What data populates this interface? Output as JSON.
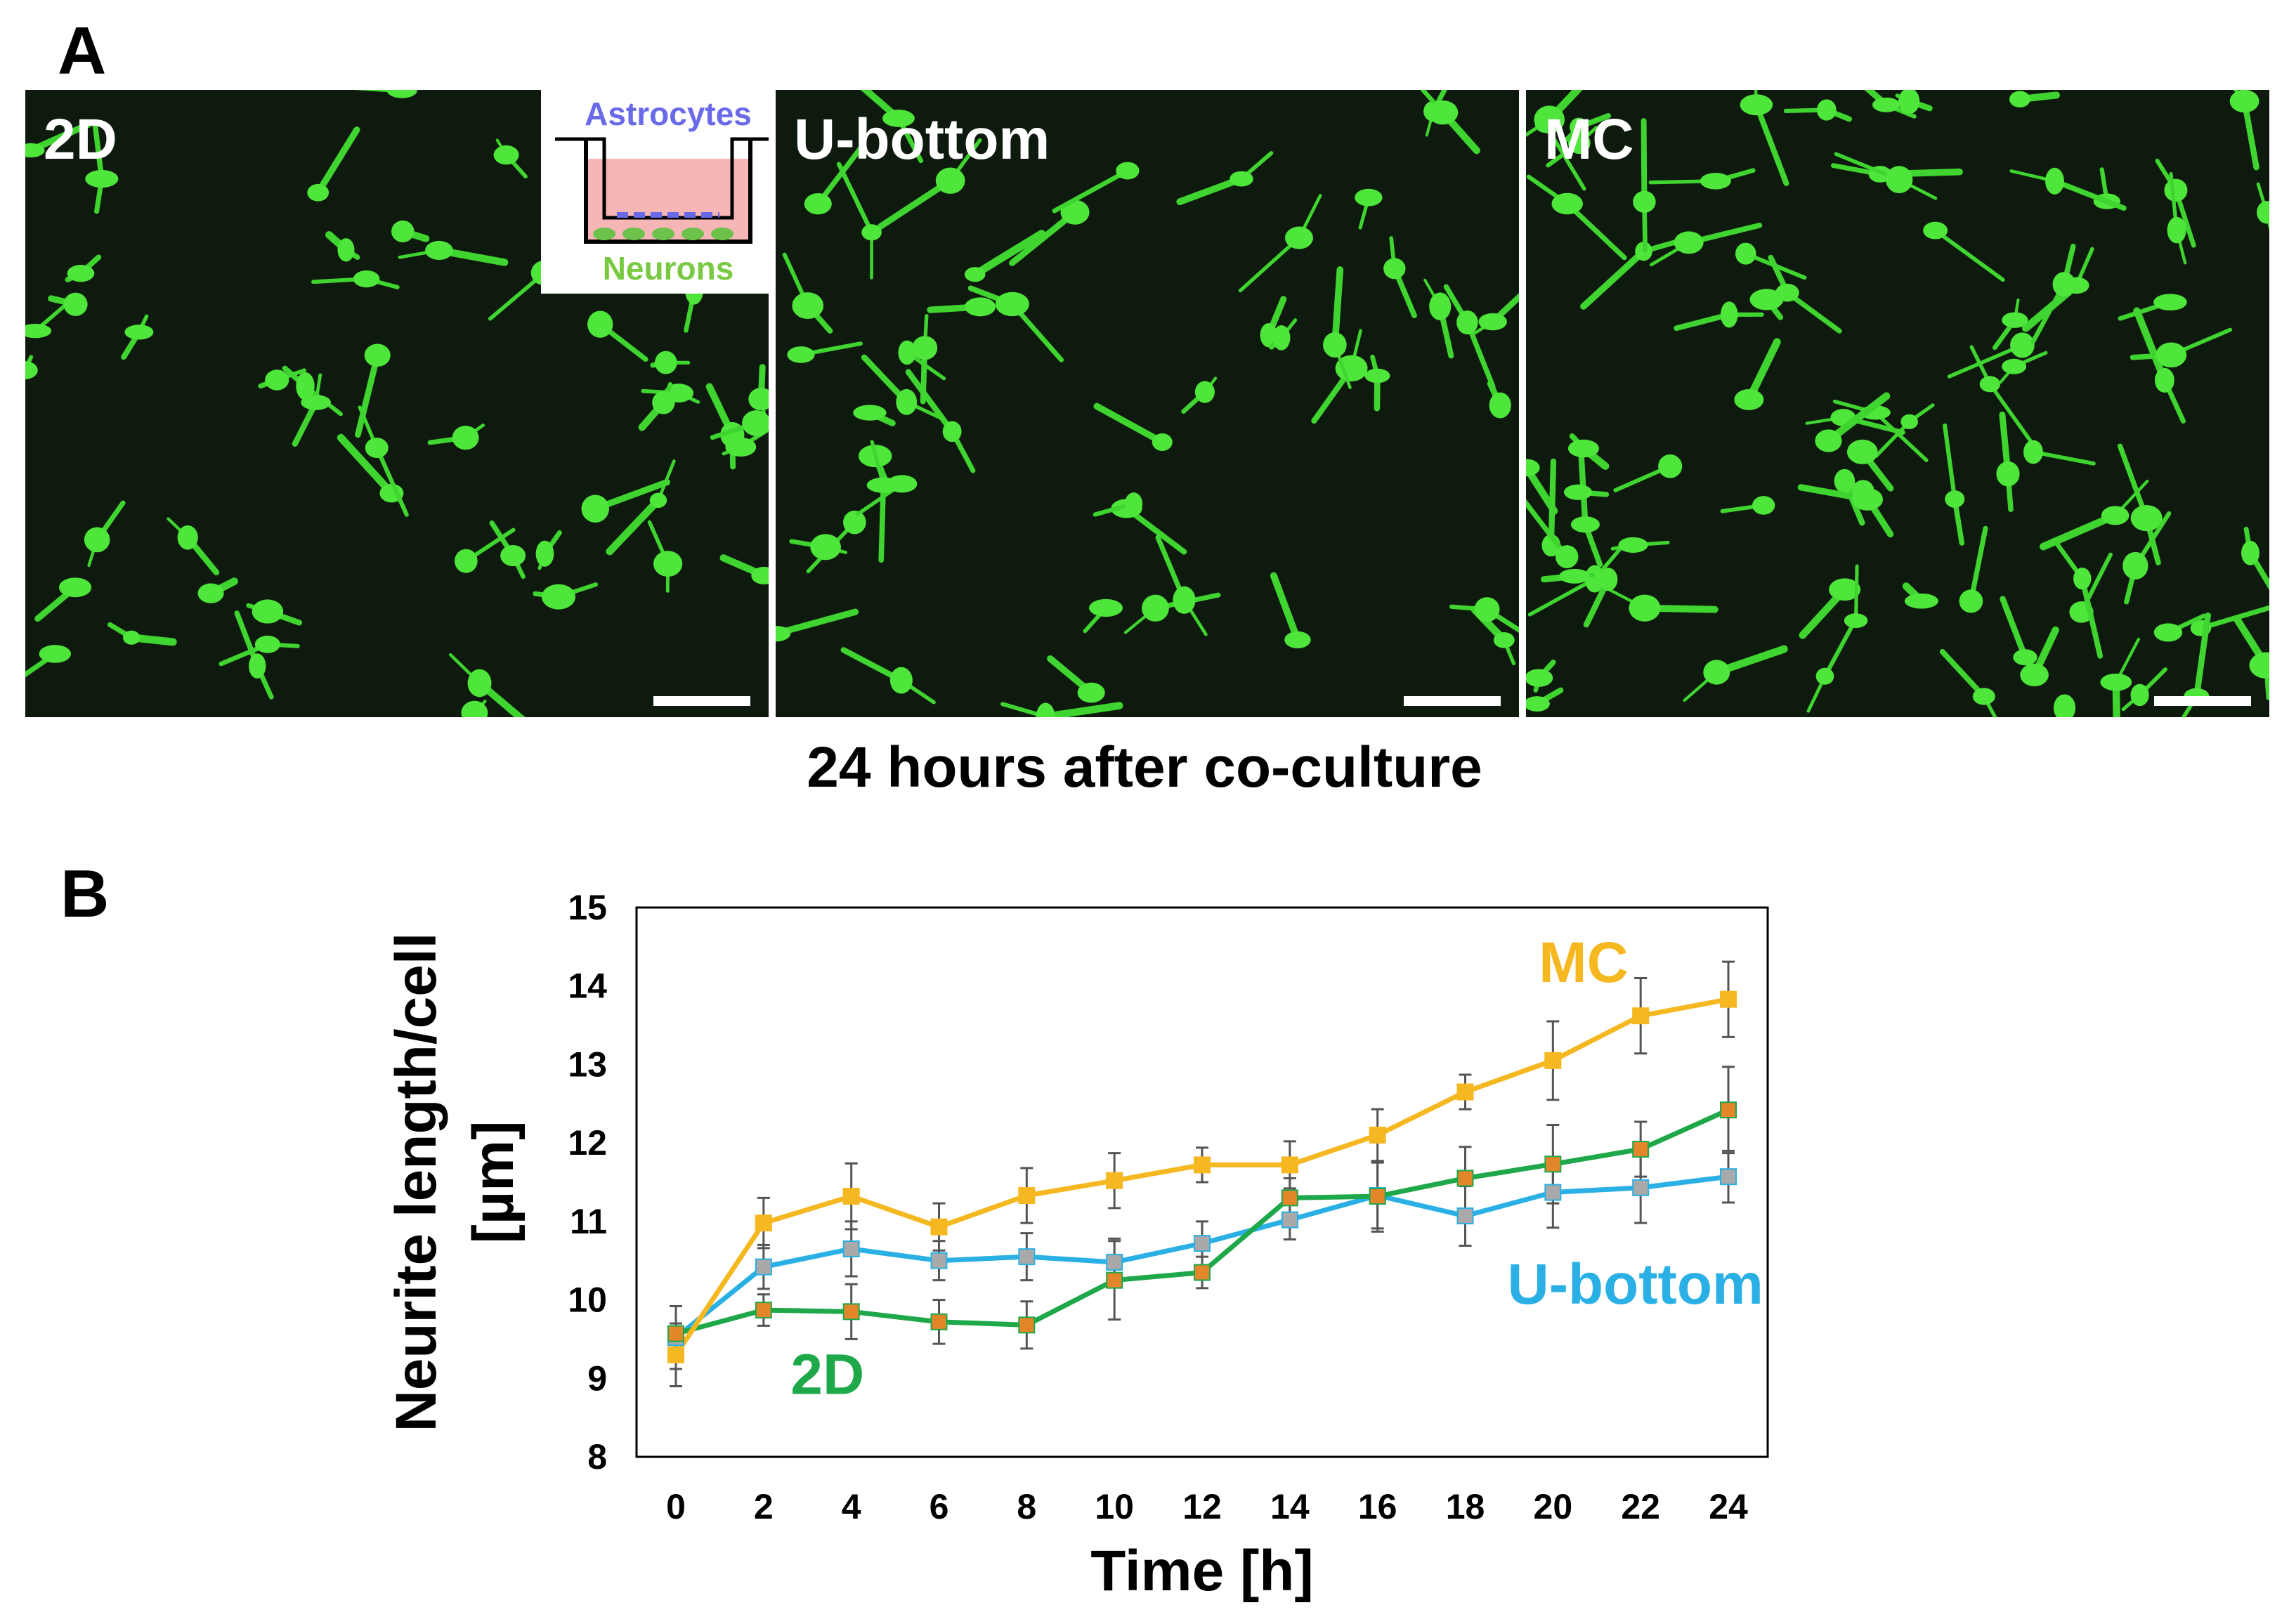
{
  "panel_a": {
    "letter": "A",
    "caption": "24 hours after co-culture",
    "images": [
      {
        "label": "2D"
      },
      {
        "label": "U-bottom"
      },
      {
        "label": "MC"
      }
    ],
    "inset": {
      "top_label": "Astrocytes",
      "bottom_label": "Neurons"
    }
  },
  "panel_b": {
    "letter": "B",
    "chart_data": {
      "type": "line",
      "title": "",
      "xlabel": "Time [h]",
      "ylabel": [
        "Neurite length/cell",
        "[µm]"
      ],
      "x": [
        0,
        2,
        4,
        6,
        8,
        10,
        12,
        14,
        16,
        18,
        20,
        22,
        24
      ],
      "xlim": [
        0,
        24
      ],
      "ylim": [
        8,
        15
      ],
      "yticks": [
        8,
        9,
        10,
        11,
        12,
        13,
        14,
        15
      ],
      "grid": false,
      "series": [
        {
          "name": "MC",
          "color": "#f5b820",
          "marker": "#f5b820",
          "values": [
            9.3,
            10.98,
            11.32,
            10.93,
            11.33,
            11.52,
            11.72,
            11.72,
            12.1,
            12.65,
            13.05,
            13.62,
            13.83
          ],
          "errors": [
            0.4,
            0.32,
            0.42,
            0.3,
            0.35,
            0.35,
            0.22,
            0.3,
            0.33,
            0.22,
            0.5,
            0.48,
            0.48
          ]
        },
        {
          "name": "U-bottom",
          "color": "#2ab0e4",
          "marker": "#a9a9a9",
          "values": [
            9.52,
            10.42,
            10.65,
            10.5,
            10.55,
            10.48,
            10.72,
            11.02,
            11.33,
            11.07,
            11.37,
            11.43,
            11.57
          ],
          "errors": [
            0.4,
            0.28,
            0.35,
            0.25,
            0.3,
            0.3,
            0.28,
            0.25,
            0.42,
            0.38,
            0.45,
            0.45,
            0.33
          ]
        },
        {
          "name": "2D",
          "color": "#1fa84a",
          "marker": "#e3862a",
          "values": [
            9.57,
            9.87,
            9.85,
            9.72,
            9.68,
            10.25,
            10.35,
            11.3,
            11.32,
            11.55,
            11.73,
            11.92,
            12.42
          ],
          "errors": [
            0.35,
            0.2,
            0.35,
            0.28,
            0.3,
            0.5,
            0.2,
            0.25,
            0.45,
            0.4,
            0.5,
            0.35,
            0.55
          ]
        }
      ]
    }
  }
}
